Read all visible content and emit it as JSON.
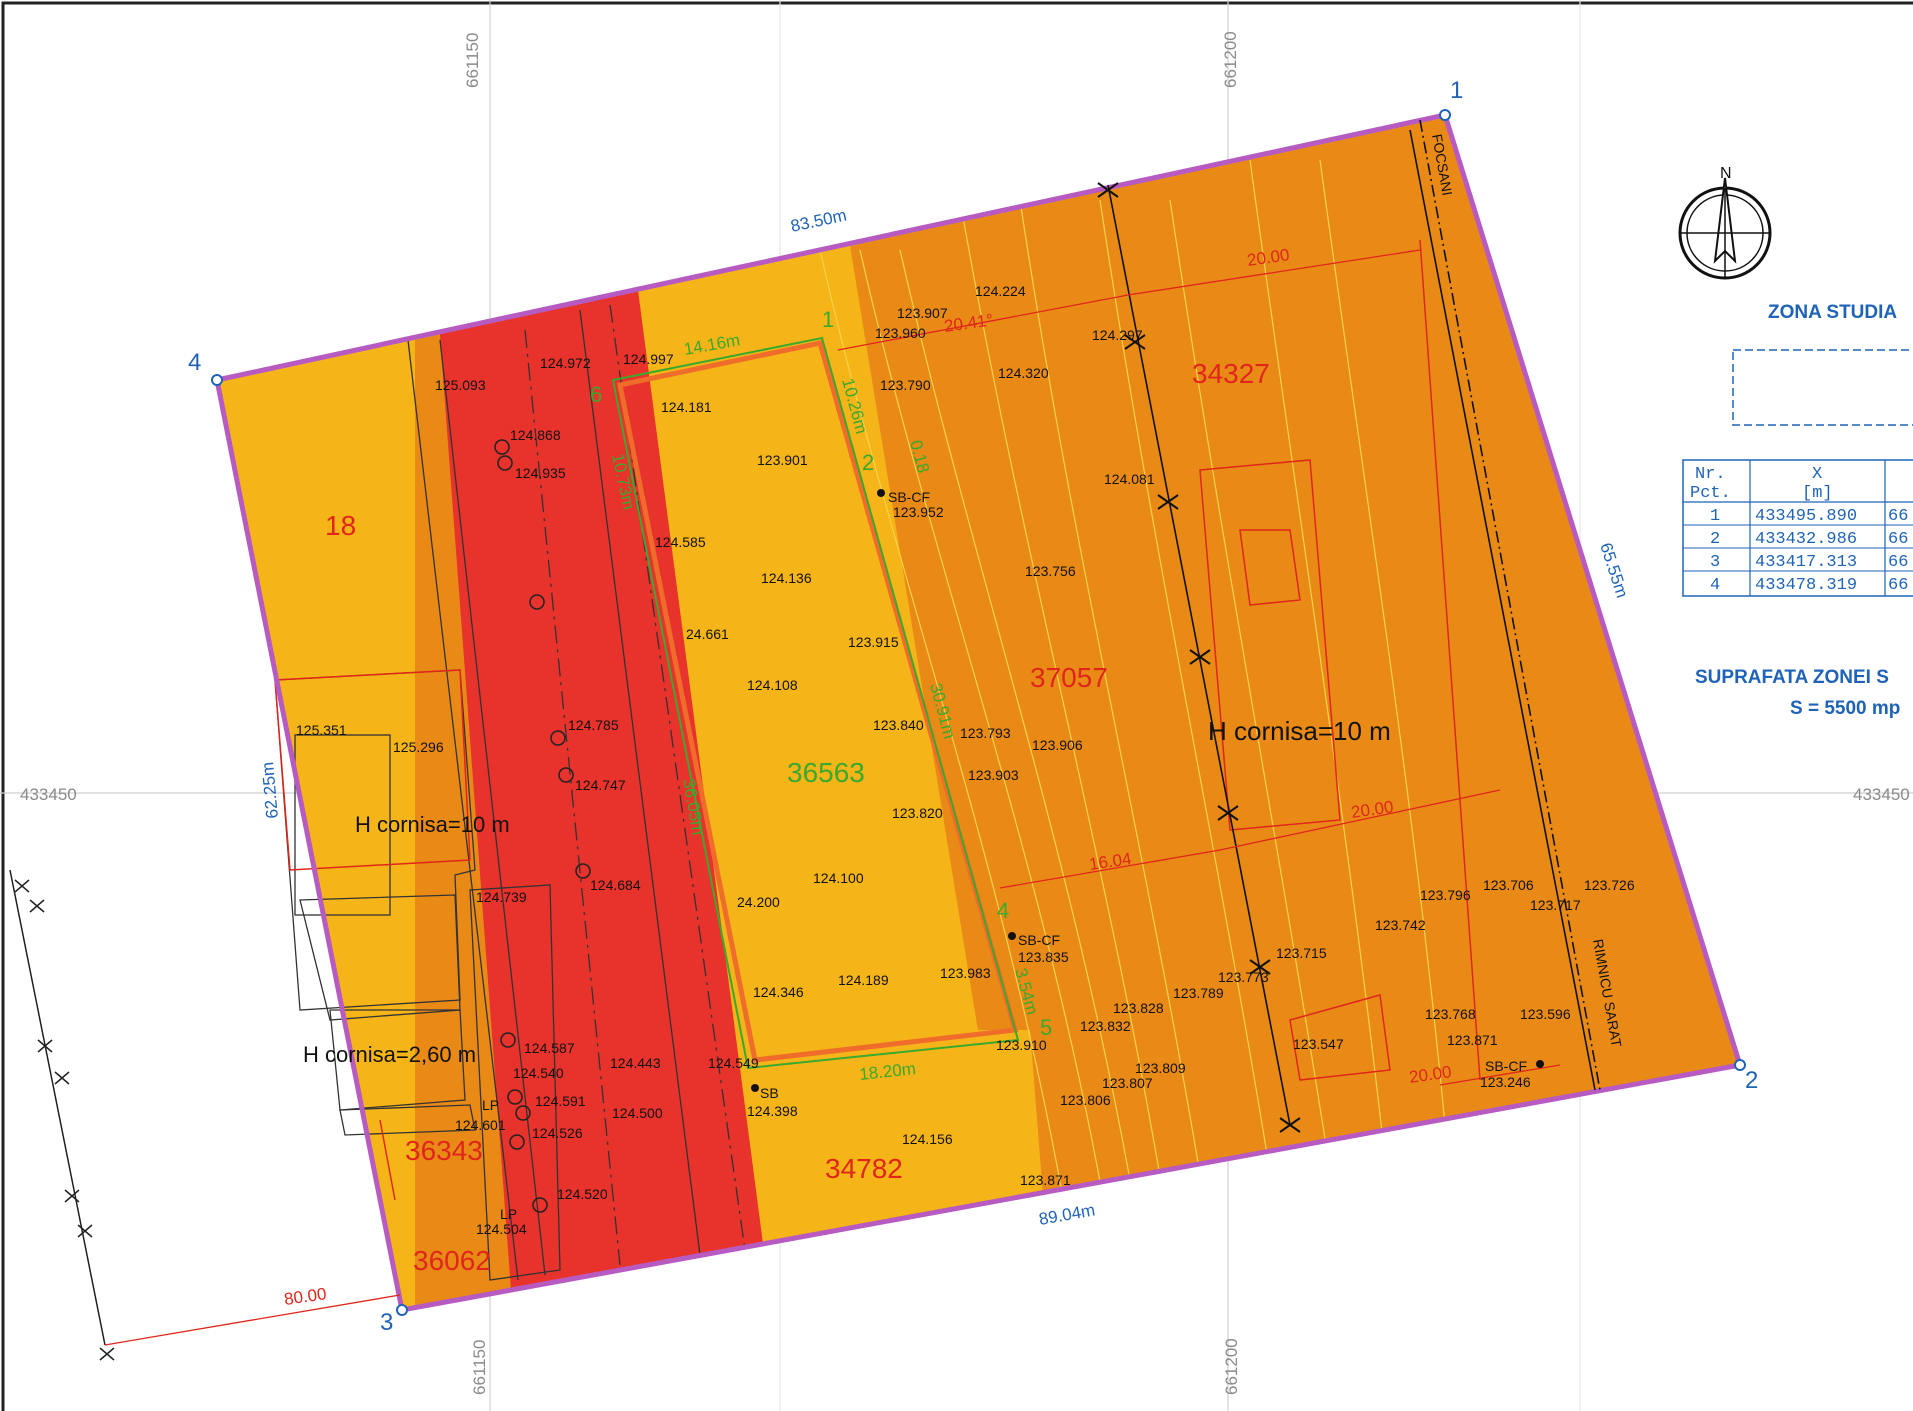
{
  "grid_labels": {
    "top_left": "661150",
    "top_right": "661200",
    "bottom_left": "661150",
    "bottom_right": "661200",
    "left_mid": "433450",
    "right_mid": "433450"
  },
  "corners": [
    "1",
    "2",
    "3",
    "4"
  ],
  "perimeter_dims": {
    "top": "83.50m",
    "right": "65.55m",
    "bottom": "89.04m",
    "left": "62.25m"
  },
  "lots": {
    "l18": "18",
    "l34327": "34327",
    "l37057": "37057",
    "l36563": "36563",
    "l34782": "34782",
    "l36343": "36343",
    "l36062": "36062"
  },
  "notes": {
    "h_cornisa_left": "H cornisa=10 m",
    "h_cornisa_right": "H cornisa=10 m",
    "h_cornisa_small": "H cornisa=2,60 m",
    "road_north": "FOCSANI",
    "road_south": "RIMNICU SARAT"
  },
  "red_dims": {
    "d_top_20": "20.00",
    "d_angle": "20.41°",
    "d_mid_20": "20.00",
    "d_mid_1604": "16.04",
    "d_low_20": "20.00",
    "d_bottom_80": "80.00"
  },
  "green_dims": {
    "g_top": "14.16m",
    "g_side_a": "10.26m",
    "g_side_b": "0.18",
    "g_left": "10.73m",
    "g_right": "30.91m",
    "g_inner": "36.05m",
    "g_low": "3.54m",
    "g_bottom": "18.20m",
    "p1": "1",
    "p2": "2",
    "p4": "4",
    "p5": "5",
    "p6": "6"
  },
  "elevations": [
    "123.907",
    "124.224",
    "123.960",
    "124.997",
    "124.972",
    "125.093",
    "124.297",
    "123.790",
    "124.320",
    "124.181",
    "124.868",
    "124.935",
    "123.901",
    "124.081",
    "123.952",
    "124.585",
    "124.136",
    "123.756",
    "123.915",
    "24.661",
    "124.108",
    "123.840",
    "123.793",
    "123.906",
    "125.351",
    "125.296",
    "124.785",
    "124.747",
    "123.903",
    "123.820",
    "124.684",
    "124.739",
    "124.100",
    "24.200",
    "123.796",
    "123.706",
    "123.726",
    "123.717",
    "123.742",
    "123.715",
    "123.835",
    "124.346",
    "124.189",
    "123.983",
    "123.773",
    "123.789",
    "123.828",
    "123.832",
    "123.768",
    "123.596",
    "123.910",
    "123.871",
    "123.547",
    "124.587",
    "124.540",
    "124.443",
    "124.549",
    "124.591",
    "124.500",
    "124.398",
    "124.601",
    "124.526",
    "124.156",
    "123.809",
    "123.807",
    "123.806",
    "123.246",
    "124.520",
    "124.504",
    "123.871"
  ],
  "markers": {
    "sbcf1": "SB-CF",
    "sbcf2": "SB-CF",
    "sbcf3": "SB-CF",
    "sb": "SB",
    "lp1": "LP",
    "lp2": "LP"
  },
  "legend": {
    "north": "N",
    "zona_title": "ZONA STUDIA",
    "suprafata_title": "SUPRAFATA ZONEI S",
    "suprafata_value": "S = 5500 mp"
  },
  "coord_table": {
    "headers": [
      [
        "Nr.",
        "Pct."
      ],
      [
        "X",
        "[m]"
      ],
      [
        " ",
        " "
      ]
    ],
    "rows": [
      [
        "1",
        "433495.890",
        "66"
      ],
      [
        "2",
        "433432.986",
        "66"
      ],
      [
        "3",
        "433417.313",
        "66"
      ],
      [
        "4",
        "433478.319",
        "66"
      ]
    ]
  },
  "colors": {
    "zone_yellow": "#f5b417",
    "zone_orange": "#e98a17",
    "zone_red": "#e8322c",
    "boundary": "#b75bc2",
    "blue_text": "#1f63b8",
    "red_text": "#e0261a",
    "green_text": "#3aa92d"
  }
}
